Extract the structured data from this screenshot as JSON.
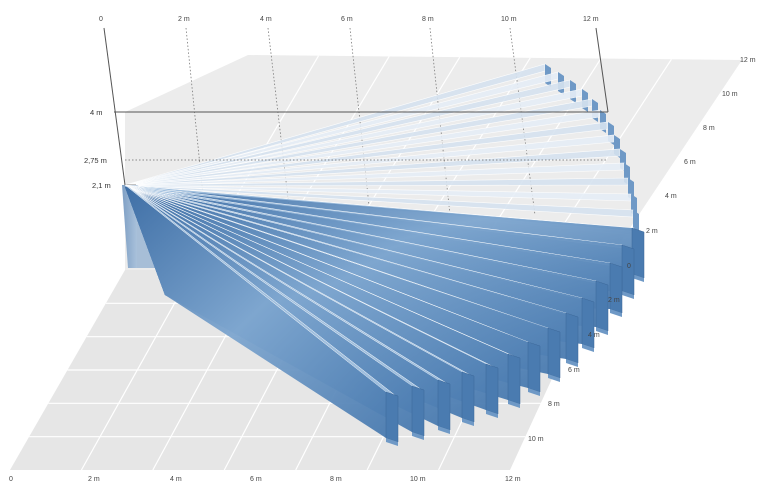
{
  "scale": {
    "top_ticks": [
      "0",
      "2 m",
      "4 m",
      "6 m",
      "8 m",
      "10 m",
      "12 m"
    ],
    "bottom_ticks": [
      "0",
      "2 m",
      "4 m",
      "6 m",
      "8 m",
      "10 m",
      "12 m"
    ],
    "right_far_ticks": [
      "12 m",
      "10 m",
      "8 m",
      "6 m",
      "4 m",
      "2 m",
      "0"
    ],
    "right_near_ticks": [
      "2 m",
      "4 m",
      "6 m",
      "8 m",
      "10 m"
    ],
    "height_labels": [
      "4 m",
      "2,75 m",
      "2,1 m"
    ]
  },
  "colors": {
    "floor": "#ebebeb",
    "floor_grid": "#ffffff",
    "beam_top": "#8eb2d6",
    "beam_front": "#4a7bb0",
    "beam_side": "#6f99c6",
    "beam_light": "#dbe6f2",
    "guide": "#555555"
  }
}
